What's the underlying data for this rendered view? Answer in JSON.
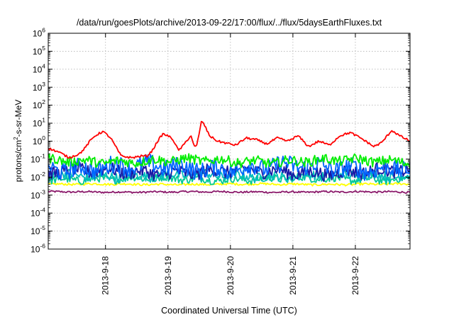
{
  "chart_data": {
    "type": "line",
    "title": "/data/run/goesPlots/archive/2013-09-22/17:00/flux/../flux/5daysEarthFluxes.txt",
    "xlabel": "Coordinated Universal Time (UTC)",
    "ylabel_parts": {
      "pre": "protons/cm",
      "sup": "2",
      "post": "-s-sr-MeV"
    },
    "y_scale": "log",
    "ylim": [
      1e-06,
      1000000.0
    ],
    "y_ticks": [
      {
        "value": 1e-06,
        "base": "10",
        "exp": "-6"
      },
      {
        "value": 1e-05,
        "base": "10",
        "exp": "-5"
      },
      {
        "value": 0.0001,
        "base": "10",
        "exp": "-4"
      },
      {
        "value": 0.001,
        "base": "10",
        "exp": "-3"
      },
      {
        "value": 0.01,
        "base": "10",
        "exp": "-2"
      },
      {
        "value": 0.1,
        "base": "10",
        "exp": "-1"
      },
      {
        "value": 1,
        "base": "10",
        "exp": "0"
      },
      {
        "value": 10,
        "base": "10",
        "exp": "1"
      },
      {
        "value": 100,
        "base": "10",
        "exp": "2"
      },
      {
        "value": 1000,
        "base": "10",
        "exp": "3"
      },
      {
        "value": 10000,
        "base": "10",
        "exp": "4"
      },
      {
        "value": 100000,
        "base": "10",
        "exp": "5"
      },
      {
        "value": 1000000,
        "base": "10",
        "exp": "6"
      }
    ],
    "xlim": [
      "2013-09-17 02:00",
      "2013-09-22 21:00"
    ],
    "x_ticks": [
      "2013-9-18",
      "2013-9-19",
      "2013-9-20",
      "2013-9-21",
      "2013-9-22"
    ],
    "grid": true,
    "series": [
      {
        "color": "#ff0000",
        "x": [
          "2013-09-17 02:00",
          "2013-09-17 06:00",
          "2013-09-17 10:00",
          "2013-09-17 14:00",
          "2013-09-17 16:00",
          "2013-09-17 18:00",
          "2013-09-17 20:00",
          "2013-09-17 23:00",
          "2013-09-18 02:00",
          "2013-09-18 06:00",
          "2013-09-18 10:00",
          "2013-09-18 14:00",
          "2013-09-18 16:00",
          "2013-09-18 18:00",
          "2013-09-18 20:00",
          "2013-09-18 22:00",
          "2013-09-19 00:00",
          "2013-09-19 02:00",
          "2013-09-19 04:00",
          "2013-09-19 06:00",
          "2013-09-19 08:00",
          "2013-09-19 09:00",
          "2013-09-19 10:00",
          "2013-09-19 11:00",
          "2013-09-19 13:00",
          "2013-09-19 16:00",
          "2013-09-19 19:00",
          "2013-09-19 22:00",
          "2013-09-20 02:00",
          "2013-09-20 06:00",
          "2013-09-20 10:00",
          "2013-09-20 14:00",
          "2013-09-20 18:00",
          "2013-09-20 22:00",
          "2013-09-21 02:00",
          "2013-09-21 06:00",
          "2013-09-21 10:00",
          "2013-09-21 14:00",
          "2013-09-21 18:00",
          "2013-09-21 22:00",
          "2013-09-22 02:00",
          "2013-09-22 05:00",
          "2013-09-22 07:00",
          "2013-09-22 10:00",
          "2013-09-22 14:00",
          "2013-09-22 17:00",
          "2013-09-22 21:00"
        ],
        "y": [
          0.4,
          0.25,
          0.12,
          0.2,
          0.4,
          1.0,
          2.0,
          3.5,
          1.5,
          0.15,
          0.12,
          0.15,
          0.15,
          0.3,
          1.0,
          2.5,
          2.0,
          1.2,
          0.3,
          0.6,
          1.5,
          2.0,
          0.5,
          0.5,
          15.0,
          2.0,
          1.0,
          0.8,
          0.6,
          1.5,
          1.2,
          0.7,
          1.5,
          1.0,
          2.0,
          0.5,
          1.0,
          0.6,
          2.0,
          3.0,
          1.5,
          0.8,
          0.5,
          0.8,
          4.0,
          2.0,
          1.0
        ]
      },
      {
        "color": "#00ee00",
        "level": 0.08,
        "spread": 0.55
      },
      {
        "color": "#0066ff",
        "level": 0.035,
        "spread": 1.0
      },
      {
        "color": "#1a1aa6",
        "level": 0.02,
        "spread": 0.75
      },
      {
        "color": "#00bcbc",
        "level": 0.012,
        "spread": 0.55
      },
      {
        "color": "#00c896",
        "level": 0.008,
        "spread": 0.45
      },
      {
        "color": "#ffff00",
        "level": 0.004,
        "spread": 0.12
      },
      {
        "color": "#8b1a6b",
        "level": 0.0015,
        "spread": 0.1
      }
    ]
  }
}
